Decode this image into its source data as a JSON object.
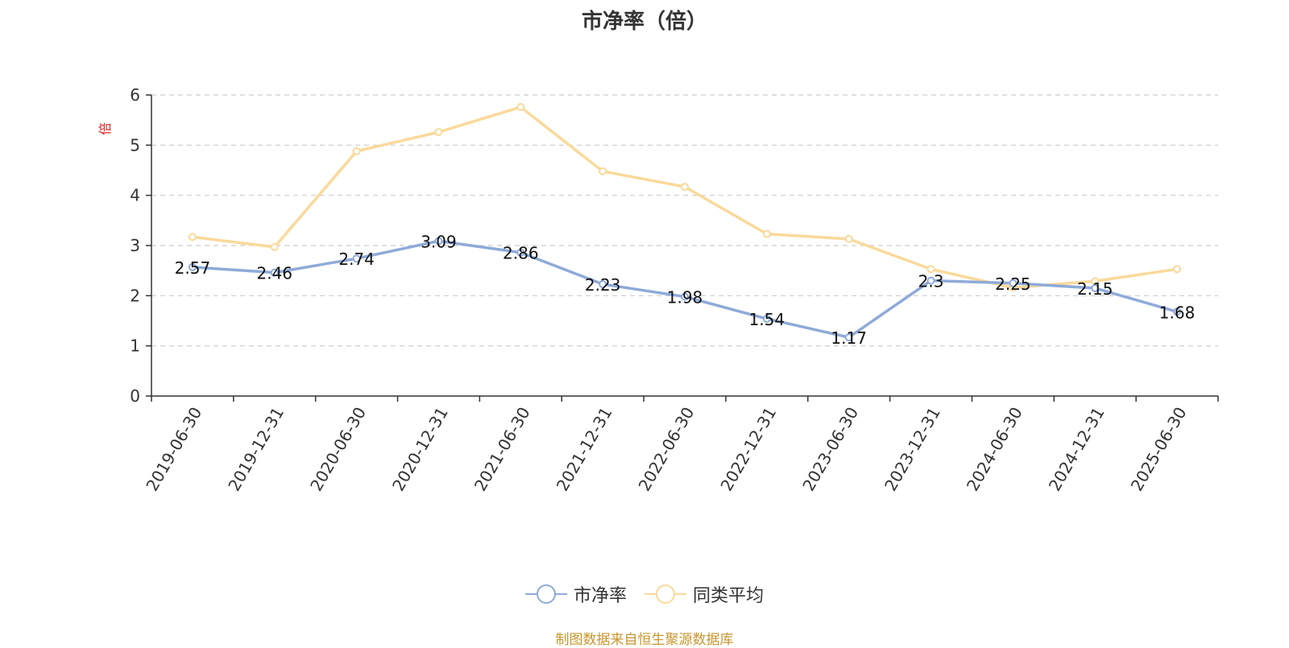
{
  "chart_data": {
    "type": "line",
    "title": "市净率（倍）",
    "ylabel": "倍",
    "ylim": [
      0,
      6
    ],
    "yticks": [
      0,
      1,
      2,
      3,
      4,
      5,
      6
    ],
    "grid": true,
    "legend_position": "bottom",
    "categories": [
      "2019-06-30",
      "2019-12-31",
      "2020-06-30",
      "2020-12-31",
      "2021-06-30",
      "2021-12-31",
      "2022-06-30",
      "2022-12-31",
      "2023-06-30",
      "2023-12-31",
      "2024-06-30",
      "2024-12-31",
      "2025-06-30"
    ],
    "series": [
      {
        "name": "市净率",
        "color": "#8eaad8",
        "values": [
          2.57,
          2.46,
          2.74,
          3.09,
          2.86,
          2.23,
          1.98,
          1.54,
          1.17,
          2.3,
          2.25,
          2.15,
          1.68
        ],
        "labels": [
          "2.57",
          "2.46",
          "2.74",
          "3.09",
          "2.86",
          "2.23",
          "1.98",
          "1.54",
          "1.17",
          "2.3",
          "2.25",
          "2.15",
          "1.68"
        ]
      },
      {
        "name": "同类平均",
        "color": "#fad99a",
        "values": [
          3.17,
          2.97,
          4.88,
          5.26,
          5.76,
          4.48,
          4.17,
          3.23,
          3.13,
          2.53,
          2.16,
          2.29,
          2.53
        ]
      }
    ]
  },
  "legend": {
    "items": [
      "市净率",
      "同类平均"
    ]
  },
  "source": "制图数据来自恒生聚源数据库",
  "colors": {
    "axis": "#333333",
    "grid": "#cccccc",
    "unit": "#e02020",
    "source": "#c8962e"
  }
}
